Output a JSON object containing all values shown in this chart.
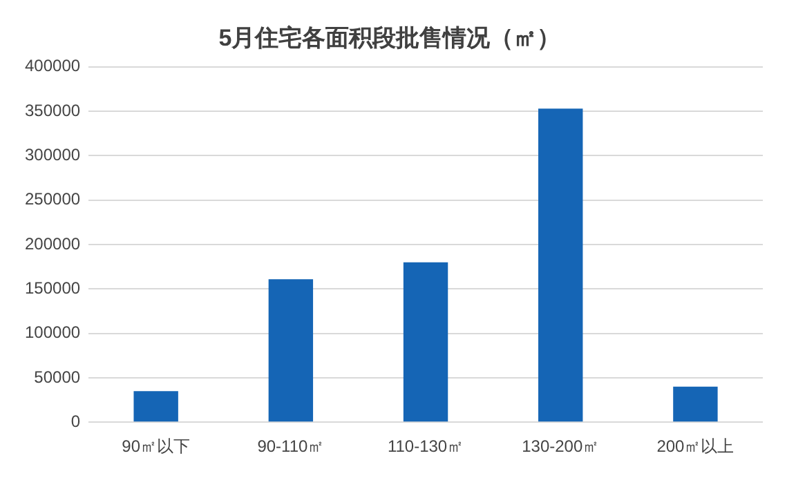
{
  "chart_data": {
    "type": "bar",
    "title": "5月住宅各面积段批售情况（㎡）",
    "categories": [
      "90㎡以下",
      "90-110㎡",
      "110-130㎡",
      "130-200㎡",
      "200㎡以上"
    ],
    "values": [
      35000,
      161000,
      180000,
      353000,
      40000
    ],
    "color": "#1565b5",
    "ylim": [
      0,
      400000
    ],
    "yticks": [
      0,
      50000,
      100000,
      150000,
      200000,
      250000,
      300000,
      350000,
      400000
    ],
    "grid": "y"
  }
}
